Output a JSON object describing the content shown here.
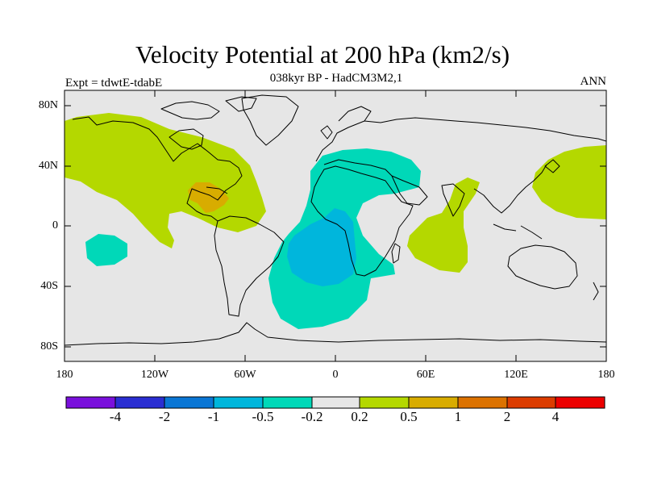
{
  "title": "Velocity Potential at 200 hPa (km2/s)",
  "subtitle": "038kyr BP - HadCM3M2,1",
  "experiment_label": "Expt = tdwtE-tdabE",
  "season_label": "ANN",
  "axes": {
    "lat_ticks": [
      "80N",
      "40N",
      "0",
      "40S",
      "80S"
    ],
    "lon_ticks": [
      "180",
      "120W",
      "60W",
      "0",
      "60E",
      "120E",
      "180"
    ]
  },
  "colorbar": {
    "labels": [
      "-4",
      "-2",
      "-1",
      "-0.5",
      "-0.2",
      "0.2",
      "0.5",
      "1",
      "2",
      "4"
    ],
    "colors": [
      "#7a10dc",
      "#2a2ed2",
      "#0a76d4",
      "#00b6dc",
      "#00d8b8",
      "#e6e6e6",
      "#b4d800",
      "#d8ac00",
      "#dc7200",
      "#dc3c00",
      "#ec0000"
    ]
  },
  "colors": {
    "background_field": "#e6e6e6",
    "positive_weak": "#b4d800",
    "positive_mid": "#d8ac00",
    "negative_weak": "#00d8b8",
    "negative_mid": "#00b6dc",
    "coastline": "#000000"
  }
}
